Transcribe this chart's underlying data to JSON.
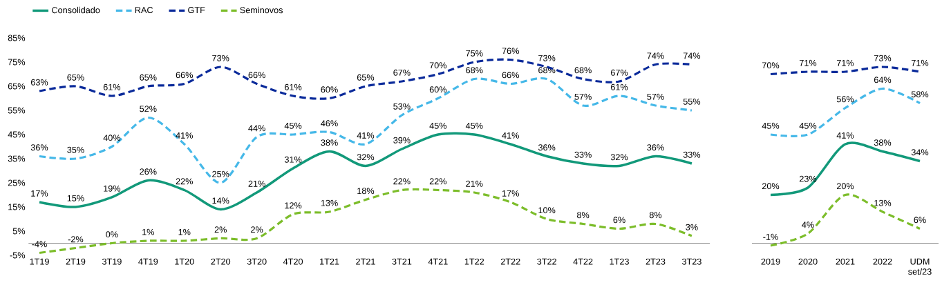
{
  "chart_data": [
    {
      "type": "line",
      "categories": [
        "1T19",
        "2T19",
        "3T19",
        "4T19",
        "1T20",
        "2T20",
        "3T20",
        "4T20",
        "1T21",
        "2T21",
        "3T21",
        "4T21",
        "1T22",
        "2T22",
        "3T22",
        "4T22",
        "1T23",
        "2T23",
        "3T23"
      ],
      "series": [
        {
          "name": "Consolidado",
          "color": "#12997a",
          "line_style": "solid",
          "values": [
            17,
            15,
            19,
            26,
            22,
            14,
            21,
            31,
            38,
            32,
            39,
            45,
            45,
            41,
            36,
            33,
            32,
            36,
            33
          ],
          "value_labels": [
            "17%",
            "15%",
            "19%",
            "26%",
            "22%",
            "14%",
            "21%",
            "31%",
            "38%",
            "32%",
            "39%",
            "45%",
            "45%",
            "41%",
            "36%",
            "33%",
            "32%",
            "36%",
            "33%"
          ]
        },
        {
          "name": "RAC",
          "color": "#45b8e8",
          "line_style": "dashed",
          "values": [
            36,
            35,
            40,
            52,
            41,
            25,
            44,
            45,
            46,
            41,
            53,
            60,
            68,
            66,
            68,
            57,
            61,
            57,
            55
          ],
          "value_labels": [
            "36%",
            "35%",
            "40%",
            "52%",
            "41%",
            "25%",
            "44%",
            "45%",
            "46%",
            "41%",
            "53%",
            "60%",
            "68%",
            "66%",
            "68%",
            "57%",
            "61%",
            "57%",
            "55%"
          ]
        },
        {
          "name": "GTF",
          "color": "#0a2a9a",
          "line_style": "dashed",
          "values": [
            63,
            65,
            61,
            65,
            66,
            73,
            66,
            61,
            60,
            65,
            67,
            70,
            75,
            76,
            73,
            68,
            67,
            74,
            74
          ],
          "value_labels": [
            "63%",
            "65%",
            "61%",
            "65%",
            "66%",
            "73%",
            "66%",
            "61%",
            "60%",
            "65%",
            "67%",
            "70%",
            "75%",
            "76%",
            "73%",
            "68%",
            "67%",
            "74%",
            "74%"
          ]
        },
        {
          "name": "Seminovos",
          "color": "#7cbd2a",
          "line_style": "dashed",
          "values": [
            -4,
            -2,
            0,
            1,
            1,
            2,
            2,
            12,
            13,
            18,
            22,
            22,
            21,
            17,
            10,
            8,
            6,
            8,
            3
          ],
          "value_labels": [
            "-4%",
            "-2%",
            "0%",
            "1%",
            "1%",
            "2%",
            "2%",
            "12%",
            "13%",
            "18%",
            "22%",
            "22%",
            "21%",
            "17%",
            "10%",
            "8%",
            "6%",
            "8%",
            "3%"
          ]
        }
      ],
      "ylim": [
        -5,
        85
      ],
      "yticks": [
        {
          "value": -5,
          "label": "-5%"
        },
        {
          "value": 5,
          "label": "5%"
        },
        {
          "value": 15,
          "label": "15%"
        },
        {
          "value": 25,
          "label": "25%"
        },
        {
          "value": 35,
          "label": "35%"
        },
        {
          "value": 45,
          "label": "45%"
        },
        {
          "value": 55,
          "label": "55%"
        },
        {
          "value": 65,
          "label": "65%"
        },
        {
          "value": 75,
          "label": "75%"
        },
        {
          "value": 85,
          "label": "85%"
        }
      ],
      "legend": "top"
    },
    {
      "type": "line",
      "categories": [
        "2019",
        "2020",
        "2021",
        "2022",
        "UDM set/23"
      ],
      "series": [
        {
          "color": "#12997a",
          "line_style": "solid",
          "values": [
            20,
            23,
            41,
            38,
            34
          ],
          "value_labels": [
            "20%",
            "23%",
            "41%",
            "38%",
            "34%"
          ]
        },
        {
          "color": "#45b8e8",
          "line_style": "dashed",
          "values": [
            45,
            45,
            56,
            64,
            58
          ],
          "value_labels": [
            "45%",
            "45%",
            "56%",
            "64%",
            "58%"
          ]
        },
        {
          "color": "#0a2a9a",
          "line_style": "dashed",
          "values": [
            70,
            71,
            71,
            73,
            71
          ],
          "value_labels": [
            "70%",
            "71%",
            "71%",
            "73%",
            "71%"
          ]
        },
        {
          "color": "#7cbd2a",
          "line_style": "dashed",
          "values": [
            -1,
            4,
            20,
            13,
            6
          ],
          "value_labels": [
            "-1%",
            "4%",
            "20%",
            "13%",
            "6%"
          ]
        }
      ],
      "ylim": [
        -5,
        85
      ],
      "tick_labels": "x"
    }
  ]
}
